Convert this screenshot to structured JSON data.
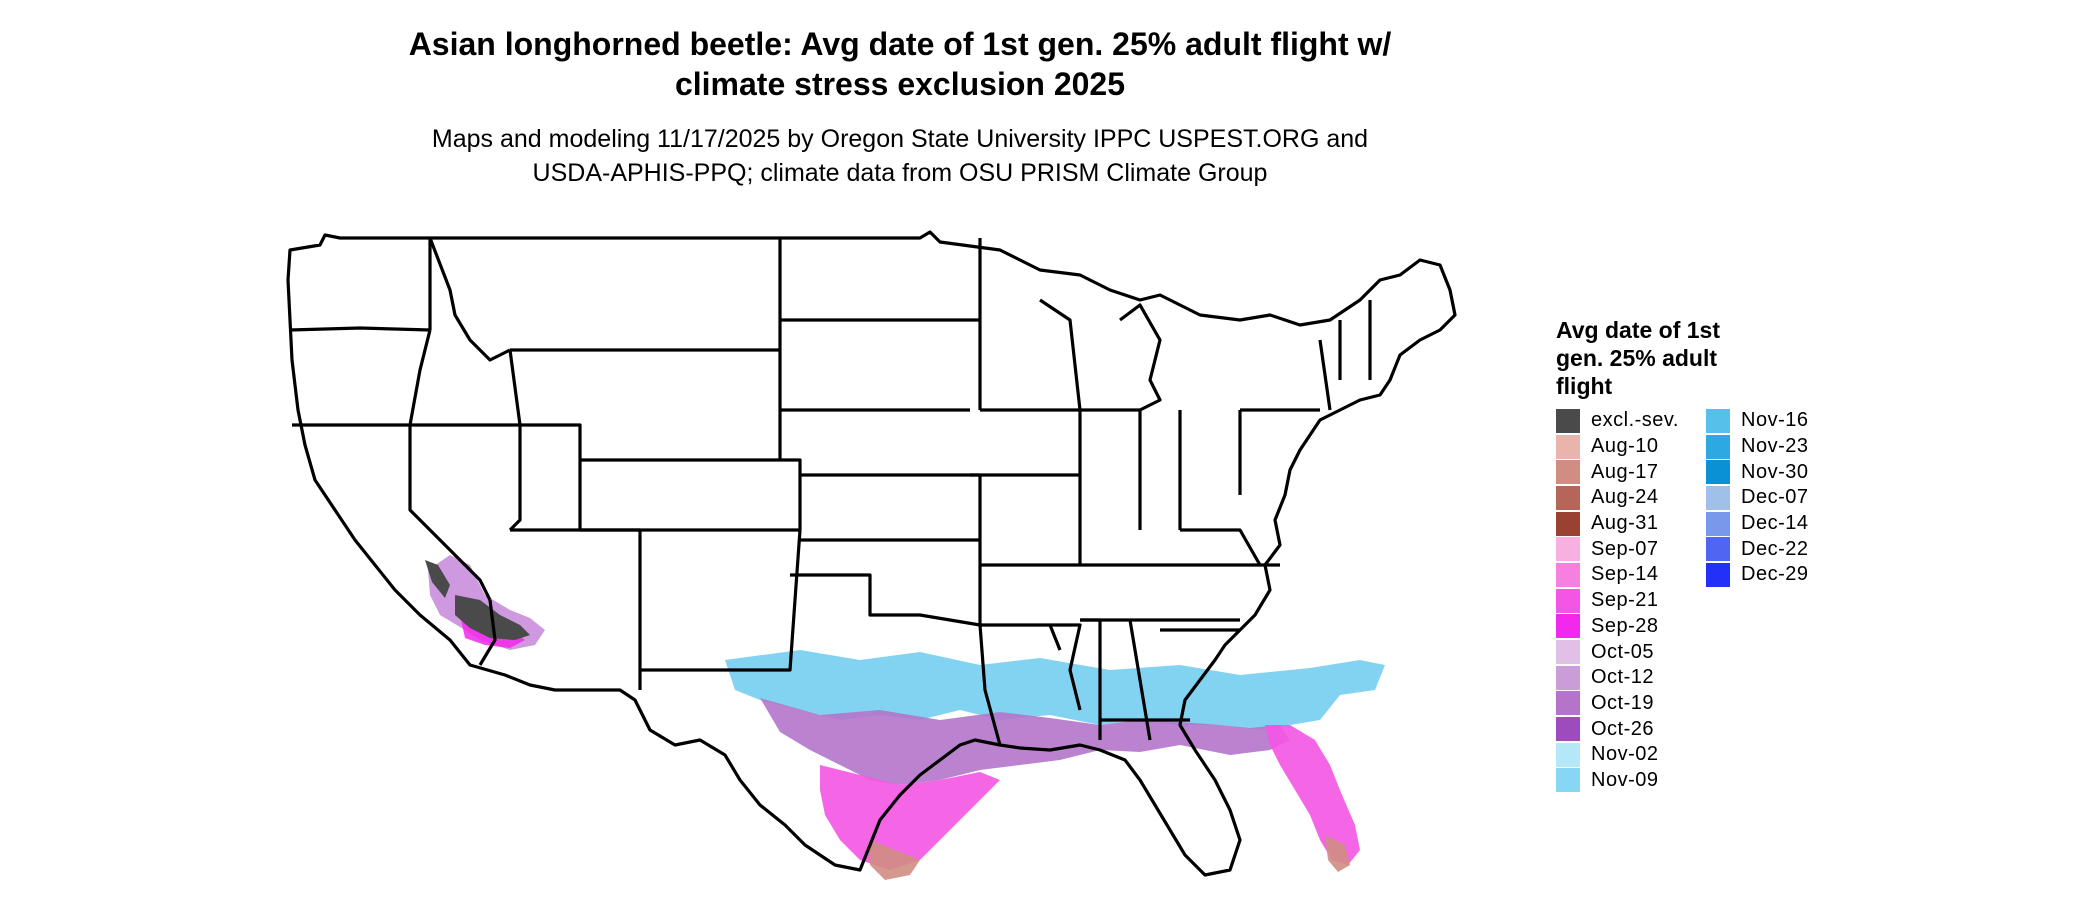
{
  "title_line1": "Asian longhorned beetle: Avg date of 1st gen. 25% adult flight w/",
  "title_line2": "climate stress exclusion 2025",
  "subtitle_line1": "Maps and modeling 11/17/2025 by Oregon State University IPPC USPEST.ORG and",
  "subtitle_line2": "USDA-APHIS-PPQ; climate data from OSU PRISM Climate Group",
  "legend": {
    "title_line1": "Avg date of 1st",
    "title_line2": "gen. 25% adult",
    "title_line3": "flight",
    "items": [
      {
        "label": "excl.-sev.",
        "color": "#4a4a4a"
      },
      {
        "label": "Aug-10",
        "color": "#e8b4ac"
      },
      {
        "label": "Aug-17",
        "color": "#d08d82"
      },
      {
        "label": "Aug-24",
        "color": "#b66658"
      },
      {
        "label": "Aug-31",
        "color": "#9a4232"
      },
      {
        "label": "Sep-07",
        "color": "#f8b0e0"
      },
      {
        "label": "Sep-14",
        "color": "#f680e0"
      },
      {
        "label": "Sep-21",
        "color": "#f455e4"
      },
      {
        "label": "Sep-28",
        "color": "#f228ec"
      },
      {
        "label": "Oct-05",
        "color": "#e0c0e6"
      },
      {
        "label": "Oct-12",
        "color": "#ca9cd8"
      },
      {
        "label": "Oct-19",
        "color": "#b474ca"
      },
      {
        "label": "Oct-26",
        "color": "#9c4cbc"
      },
      {
        "label": "Nov-02",
        "color": "#b4e8f8"
      },
      {
        "label": "Nov-09",
        "color": "#86d6f4"
      },
      {
        "label": "Nov-16",
        "color": "#56c0ea"
      },
      {
        "label": "Nov-23",
        "color": "#2ea8e0"
      },
      {
        "label": "Nov-30",
        "color": "#0a90d4"
      },
      {
        "label": "Dec-07",
        "color": "#a0c0ea"
      },
      {
        "label": "Dec-14",
        "color": "#7898ec"
      },
      {
        "label": "Dec-22",
        "color": "#4e66f2"
      },
      {
        "label": "Dec-29",
        "color": "#2230f8"
      }
    ]
  }
}
